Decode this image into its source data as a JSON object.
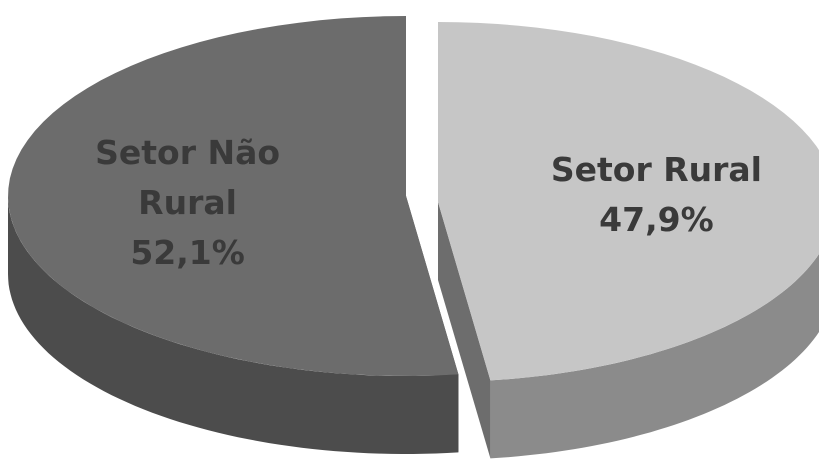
{
  "chart_data": {
    "type": "pie",
    "categories": [
      "Setor Não Rural",
      "Setor Rural"
    ],
    "values": [
      52.1,
      47.9
    ],
    "value_labels": [
      "52,1%",
      "47,9%"
    ],
    "colors": [
      "#6c6c6c",
      "#c6c6c6"
    ]
  }
}
